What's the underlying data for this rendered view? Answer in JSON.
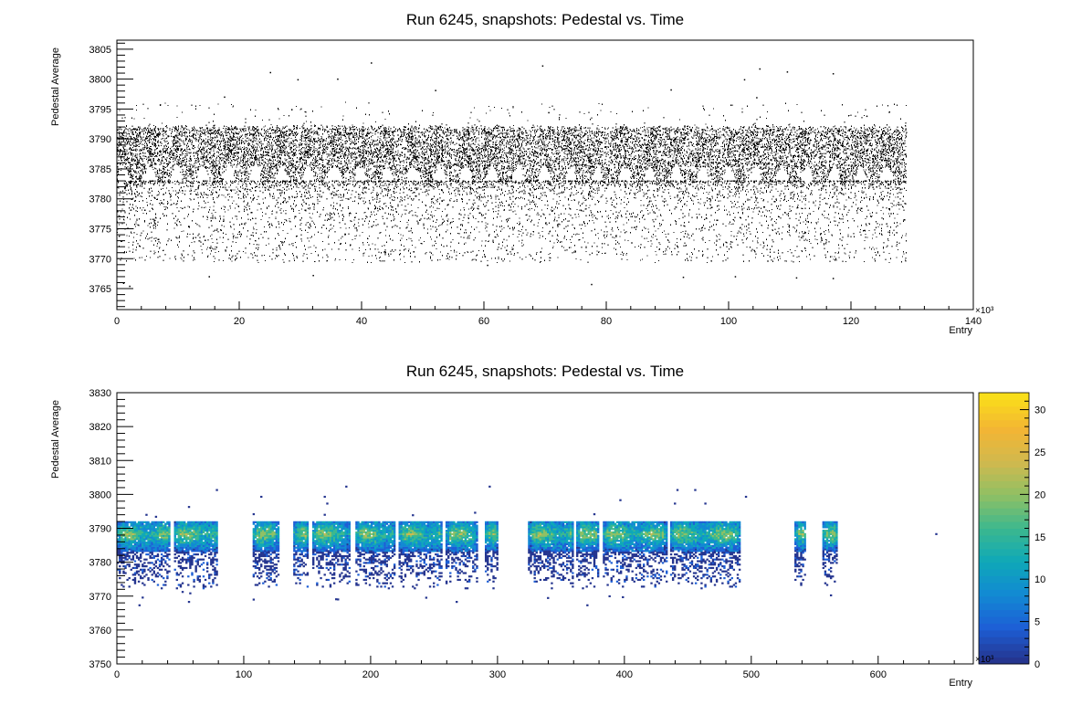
{
  "chart_data": [
    {
      "type": "scatter",
      "title": "Run 6245, snapshots: Pedestal vs. Time",
      "xlabel": "Entry",
      "ylabel": "Pedestal Average",
      "x_multiplier": "×10³",
      "xlim": [
        0,
        140
      ],
      "ylim": [
        3761.5,
        3806.5
      ],
      "xticks": [
        0,
        20,
        40,
        60,
        80,
        100,
        120,
        140
      ],
      "yticks": [
        3765,
        3770,
        3775,
        3780,
        3785,
        3790,
        3795,
        3800,
        3805
      ],
      "data_x_range": [
        0,
        129
      ],
      "dense_band": [
        3783,
        3792
      ],
      "sparse_tail": [
        3770,
        3783
      ],
      "cycle_period": 4.3,
      "outliers": [
        {
          "x": 41.5,
          "y": 3802.8
        },
        {
          "x": 69.5,
          "y": 3802.3
        },
        {
          "x": 105,
          "y": 3801.8
        },
        {
          "x": 109.5,
          "y": 3801.3
        },
        {
          "x": 25,
          "y": 3801.2
        },
        {
          "x": 117,
          "y": 3801.0
        },
        {
          "x": 29.5,
          "y": 3800.0
        },
        {
          "x": 36,
          "y": 3800.1
        },
        {
          "x": 102.5,
          "y": 3800.0
        },
        {
          "x": 90.5,
          "y": 3798.3
        },
        {
          "x": 52,
          "y": 3798.2
        },
        {
          "x": 17.5,
          "y": 3797.1
        },
        {
          "x": 104.5,
          "y": 3797.0
        },
        {
          "x": 7,
          "y": 3795.8
        },
        {
          "x": 28.5,
          "y": 3795.0
        },
        {
          "x": 122.5,
          "y": 3793.9
        },
        {
          "x": 70.5,
          "y": 3794.5
        },
        {
          "x": 77.5,
          "y": 3765.8
        },
        {
          "x": 2,
          "y": 3765.5
        },
        {
          "x": 1,
          "y": 3766.0
        },
        {
          "x": 101,
          "y": 3767.1
        },
        {
          "x": 111,
          "y": 3766.9
        },
        {
          "x": 117,
          "y": 3766.8
        },
        {
          "x": 15,
          "y": 3767.1
        },
        {
          "x": 92.5,
          "y": 3767.0
        },
        {
          "x": 32,
          "y": 3767.3
        },
        {
          "x": 60.5,
          "y": 3769.0
        }
      ]
    },
    {
      "type": "heatmap",
      "title": "Run 6245, snapshots: Pedestal vs. Time",
      "xlabel": "Entry",
      "ylabel": "Pedestal Average",
      "x_multiplier": "×10³",
      "xlim": [
        0,
        675
      ],
      "ylim": [
        3750,
        3830
      ],
      "xticks": [
        0,
        100,
        200,
        300,
        400,
        500,
        600
      ],
      "yticks": [
        3750,
        3760,
        3770,
        3780,
        3790,
        3800,
        3810,
        3820,
        3830
      ],
      "zlim": [
        0,
        32
      ],
      "zticks": [
        0,
        5,
        10,
        15,
        20,
        25,
        30
      ],
      "palette": [
        "#25358f",
        "#1d5fd6",
        "#1289d3",
        "#0fa8b8",
        "#3cb88e",
        "#8fc064",
        "#d0b94e",
        "#f3b534",
        "#f9de1a"
      ],
      "core_band": [
        3783,
        3792
      ],
      "tail_band": [
        3772,
        3783
      ],
      "segments": [
        [
          0,
          42
        ],
        [
          45,
          79
        ],
        [
          107,
          127
        ],
        [
          139,
          151
        ],
        [
          154,
          183
        ],
        [
          188,
          219
        ],
        [
          222,
          256
        ],
        [
          259,
          284
        ],
        [
          290,
          300
        ],
        [
          324,
          360
        ],
        [
          362,
          380
        ],
        [
          383,
          433
        ],
        [
          436,
          491
        ],
        [
          534,
          543
        ],
        [
          556,
          568
        ]
      ],
      "outliers": [
        {
          "x": 180,
          "y": 3802
        },
        {
          "x": 293,
          "y": 3802
        },
        {
          "x": 441,
          "y": 3801
        },
        {
          "x": 455,
          "y": 3801
        },
        {
          "x": 78,
          "y": 3801
        },
        {
          "x": 495,
          "y": 3799
        },
        {
          "x": 163,
          "y": 3799
        },
        {
          "x": 113,
          "y": 3799
        },
        {
          "x": 396,
          "y": 3798
        },
        {
          "x": 463,
          "y": 3797
        },
        {
          "x": 439,
          "y": 3797
        },
        {
          "x": 165,
          "y": 3797
        },
        {
          "x": 56,
          "y": 3796
        },
        {
          "x": 645,
          "y": 3788
        },
        {
          "x": 17,
          "y": 3767
        },
        {
          "x": 370,
          "y": 3767
        },
        {
          "x": 56,
          "y": 3768
        },
        {
          "x": 267,
          "y": 3768
        }
      ]
    }
  ]
}
